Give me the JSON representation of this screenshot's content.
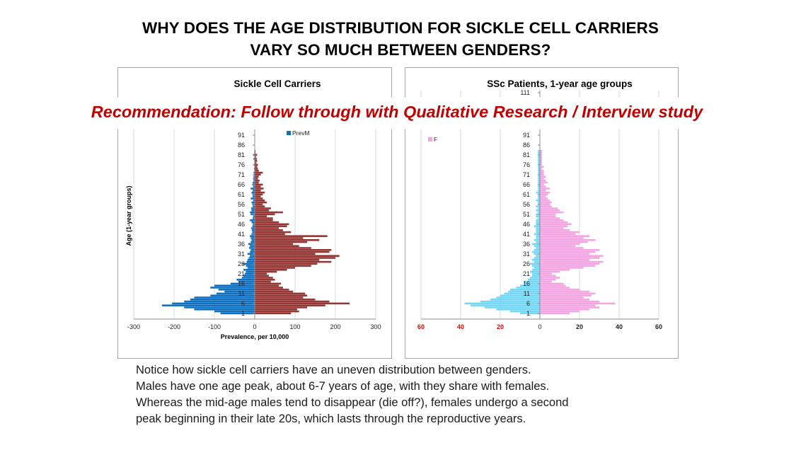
{
  "title": {
    "line1": "WHY DOES THE AGE DISTRIBUTION FOR SICKLE CELL CARRIERS",
    "line2": "VARY SO MUCH BETWEEN GENDERS?"
  },
  "banner": "Recommendation: Follow through with Qualitative Research / Interview study",
  "notes": [
    "Notice how sickle cell carriers have an uneven distribution between genders.",
    "Males have one age peak, about 6-7 years of age, with they share with females.",
    "Whereas the mid-age males tend to disappear (die off?), females undergo a second",
    "peak beginning in their late 20s, which lasts through the reproductive years."
  ],
  "chart_data": [
    {
      "type": "bar",
      "orientation": "horizontal",
      "title": "Sickle Cell Carriers",
      "xlabel": "Prevalence, per 10,000",
      "ylabel": "Age (1-year groups)",
      "xlim": [
        -300,
        300
      ],
      "x_ticks": [
        -300,
        -200,
        -100,
        0,
        100,
        200,
        300
      ],
      "x_tick_labels": [
        "-300",
        "-200",
        "-100",
        "0",
        "100",
        "200",
        "300"
      ],
      "y_ticks": [
        1,
        6,
        11,
        16,
        21,
        26,
        31,
        36,
        41,
        46,
        51,
        56,
        61,
        66,
        71,
        76,
        81,
        86,
        91
      ],
      "ages": [
        1,
        2,
        3,
        4,
        5,
        6,
        7,
        8,
        9,
        10,
        11,
        12,
        13,
        14,
        15,
        16,
        17,
        18,
        19,
        20,
        21,
        22,
        23,
        24,
        25,
        26,
        27,
        28,
        29,
        30,
        31,
        32,
        33,
        34,
        35,
        36,
        37,
        38,
        39,
        40,
        41,
        42,
        43,
        44,
        45,
        46,
        47,
        48,
        49,
        50,
        51,
        52,
        53,
        54,
        55,
        56,
        57,
        58,
        59,
        60,
        61,
        62,
        63,
        64,
        65,
        66,
        67,
        68,
        69,
        70,
        71,
        72,
        73,
        74,
        75,
        76,
        77,
        78,
        79,
        80,
        81,
        82,
        83
      ],
      "series": [
        {
          "name": "PrevM",
          "color": "#1070c0",
          "values": [
            -85,
            -100,
            -150,
            -175,
            -230,
            -205,
            -175,
            -160,
            -150,
            -110,
            -95,
            -75,
            -90,
            -110,
            -100,
            -60,
            -40,
            -45,
            -32,
            -28,
            -25,
            -22,
            -28,
            -18,
            -22,
            -30,
            -20,
            -18,
            -15,
            -12,
            -18,
            -12,
            -10,
            -14,
            -12,
            -16,
            -10,
            -8,
            -10,
            -12,
            -8,
            -6,
            -7,
            -9,
            -6,
            -5,
            -8,
            -12,
            -5,
            -4,
            -10,
            -12,
            -8,
            -9,
            -5,
            -6,
            -8,
            -4,
            -10,
            -5,
            -6,
            -8,
            -5,
            -10,
            -4,
            -6,
            -5,
            -3,
            -4,
            -3,
            -2,
            -3,
            -1,
            -2,
            -1,
            -2,
            -1,
            -1,
            -3,
            -1,
            -4,
            -1,
            -1
          ]
        },
        {
          "color": "#943634",
          "values": [
            90,
            110,
            105,
            130,
            175,
            235,
            185,
            150,
            120,
            130,
            125,
            95,
            85,
            70,
            60,
            65,
            40,
            50,
            45,
            35,
            30,
            55,
            80,
            100,
            140,
            155,
            190,
            160,
            200,
            210,
            150,
            185,
            190,
            140,
            110,
            95,
            130,
            160,
            120,
            180,
            75,
            90,
            70,
            60,
            80,
            85,
            60,
            45,
            45,
            30,
            50,
            70,
            35,
            40,
            25,
            20,
            30,
            25,
            20,
            15,
            20,
            25,
            15,
            22,
            15,
            20,
            10,
            12,
            8,
            10,
            15,
            20,
            10,
            8,
            6,
            8,
            4,
            6,
            5,
            3,
            6,
            2,
            2
          ]
        }
      ]
    },
    {
      "type": "bar",
      "orientation": "horizontal",
      "title": "SSc Patients, 1-year age groups",
      "xlim": [
        -60,
        60
      ],
      "x_ticks": [
        -60,
        -40,
        -20,
        0,
        20,
        40,
        60
      ],
      "x_tick_labels": [
        "60",
        "40",
        "20",
        "0",
        "20",
        "40",
        "60"
      ],
      "y_ticks": [
        1,
        6,
        11,
        16,
        21,
        26,
        31,
        36,
        41,
        46,
        51,
        56,
        61,
        66,
        71,
        76,
        81,
        86,
        91,
        111
      ],
      "ages": [
        1,
        2,
        3,
        4,
        5,
        6,
        7,
        8,
        9,
        10,
        11,
        12,
        13,
        14,
        15,
        16,
        17,
        18,
        19,
        20,
        21,
        22,
        23,
        24,
        25,
        26,
        27,
        28,
        29,
        30,
        31,
        32,
        33,
        34,
        35,
        36,
        37,
        38,
        39,
        40,
        41,
        42,
        43,
        44,
        45,
        46,
        47,
        48,
        49,
        50,
        51,
        52,
        53,
        54,
        55,
        56,
        57,
        58,
        59,
        60,
        61,
        62,
        63,
        64,
        65,
        66,
        67,
        68,
        69,
        70,
        71,
        72,
        73,
        74,
        75,
        76,
        77,
        78,
        79,
        80,
        81,
        82,
        83
      ],
      "series": [
        {
          "color": "#73d7f5",
          "values": [
            -10,
            -15,
            -22,
            -28,
            -35,
            -38,
            -30,
            -25,
            -22,
            -20,
            -18,
            -16,
            -15,
            -12,
            -10,
            -8,
            -8,
            -6,
            -5,
            -4,
            -4,
            -5,
            -4,
            -3,
            -4,
            -5,
            -3,
            -4,
            -3,
            -2,
            -3,
            -4,
            -3,
            -2,
            -3,
            -4,
            -2,
            -3,
            -2,
            -2,
            -3,
            -2,
            -2,
            -2,
            -3,
            -2,
            -2,
            -2,
            -1,
            -2,
            -2,
            -1,
            -2,
            -1,
            -2,
            -1,
            -1,
            -2,
            -1,
            -1,
            -1,
            -2,
            -1,
            -1,
            -1,
            -1,
            -1,
            -1,
            -1,
            -1,
            -1,
            -1,
            -1,
            -1,
            -1,
            -1,
            -1,
            -1,
            -1,
            -1,
            -1,
            -1,
            -1
          ]
        },
        {
          "name": "F",
          "color": "#f3a6e2",
          "values": [
            15,
            20,
            25,
            30,
            28,
            38,
            30,
            25,
            22,
            26,
            28,
            25,
            20,
            15,
            13,
            12,
            6,
            8,
            10,
            8,
            6,
            10,
            15,
            22,
            28,
            30,
            32,
            25,
            30,
            32,
            25,
            28,
            30,
            22,
            18,
            20,
            24,
            28,
            22,
            25,
            18,
            20,
            15,
            12,
            14,
            16,
            14,
            12,
            10,
            8,
            8,
            12,
            10,
            9,
            6,
            5,
            6,
            5,
            4,
            3,
            4,
            5,
            3,
            5,
            3,
            2,
            4,
            3,
            2,
            3,
            2,
            2,
            2,
            1,
            2,
            1,
            1,
            1,
            1,
            1,
            1,
            1,
            1
          ]
        }
      ]
    }
  ]
}
